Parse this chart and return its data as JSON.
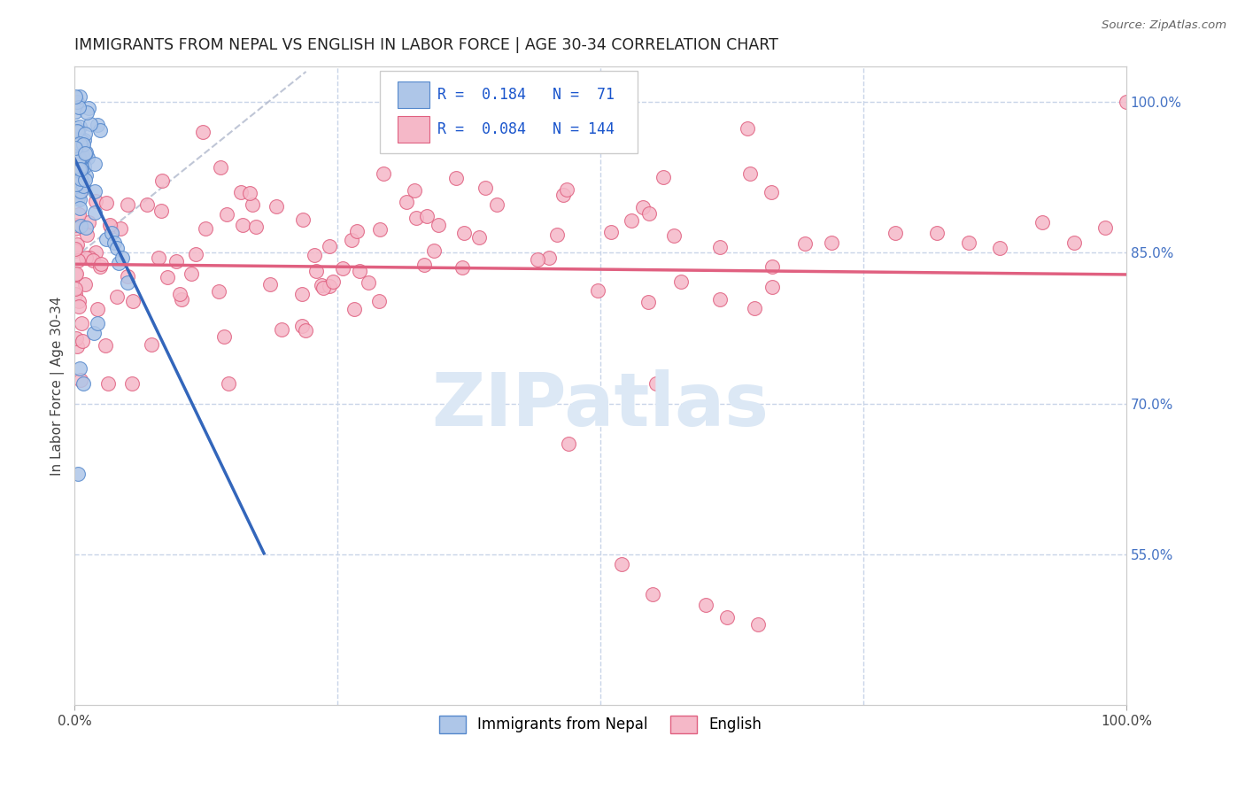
{
  "title": "IMMIGRANTS FROM NEPAL VS ENGLISH IN LABOR FORCE | AGE 30-34 CORRELATION CHART",
  "source": "Source: ZipAtlas.com",
  "ylabel": "In Labor Force | Age 30-34",
  "xmin": 0.0,
  "xmax": 1.0,
  "ymin": 0.4,
  "ymax": 1.035,
  "right_yticks": [
    0.55,
    0.7,
    0.85,
    1.0
  ],
  "right_yticklabels": [
    "55.0%",
    "70.0%",
    "85.0%",
    "100.0%"
  ],
  "blue_R": 0.184,
  "blue_N": 71,
  "pink_R": 0.084,
  "pink_N": 144,
  "blue_color": "#aec6e8",
  "blue_edge_color": "#5588cc",
  "blue_line_color": "#3366bb",
  "pink_color": "#f5b8c8",
  "pink_edge_color": "#e06080",
  "pink_line_color": "#e06080",
  "gridline_color": "#c8d4e8",
  "background_color": "#ffffff",
  "watermark_color": "#dce8f5",
  "legend_blue_label": "Immigrants from Nepal",
  "legend_pink_label": "English"
}
